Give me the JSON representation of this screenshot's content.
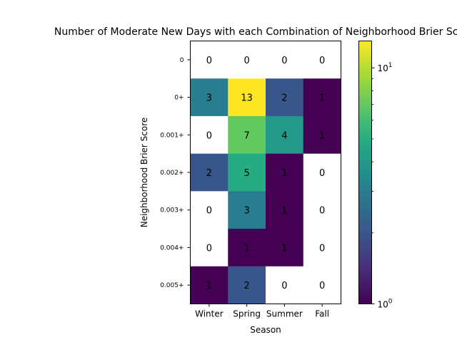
{
  "chart_data": {
    "type": "heatmap",
    "title": "Number of Moderate New Days with each Combination of Neighborhood Brier Score",
    "xlabel": "Season",
    "ylabel": "Neighborhood Brier Score",
    "x_categories": [
      "Winter",
      "Spring",
      "Summer",
      "Fall"
    ],
    "y_categories": [
      "0",
      "0+",
      "0.001+",
      "0.002+",
      "0.003+",
      "0.004+",
      "0.005+"
    ],
    "values": [
      [
        0,
        0,
        0,
        0
      ],
      [
        3,
        13,
        2,
        1
      ],
      [
        0,
        7,
        4,
        1
      ],
      [
        2,
        5,
        1,
        0
      ],
      [
        0,
        3,
        1,
        0
      ],
      [
        0,
        1,
        1,
        0
      ],
      [
        1,
        2,
        0,
        0
      ]
    ],
    "color_scale": "log",
    "colormap": "viridis",
    "zero_color": "#ffffff",
    "colorbar": {
      "min": 1,
      "max": 13,
      "tick_labels": [
        "10^0",
        "10^1"
      ]
    }
  }
}
